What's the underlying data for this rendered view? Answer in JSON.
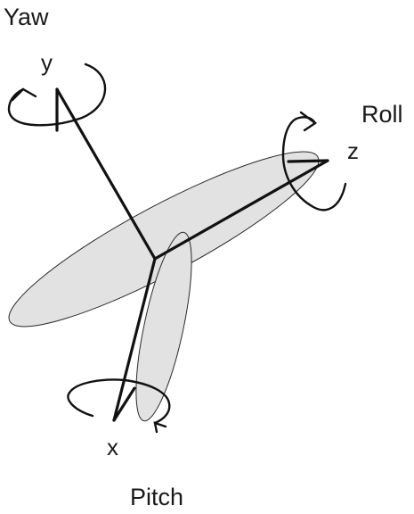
{
  "labels": {
    "yaw": "Yaw",
    "roll": "Roll",
    "pitch": "Pitch",
    "axis_x": "x",
    "axis_y": "y",
    "axis_z": "z"
  },
  "colors": {
    "fuselage_fill": "#e2e2e2",
    "wing_fill": "#e2e2e2",
    "outline": "#2a2a2a",
    "axis": "#111111",
    "text": "#1a1a1a"
  },
  "icons": {
    "yaw_rotation": "curved-arrow-icon",
    "roll_rotation": "curved-arrow-icon",
    "pitch_rotation": "curved-arrow-icon"
  }
}
